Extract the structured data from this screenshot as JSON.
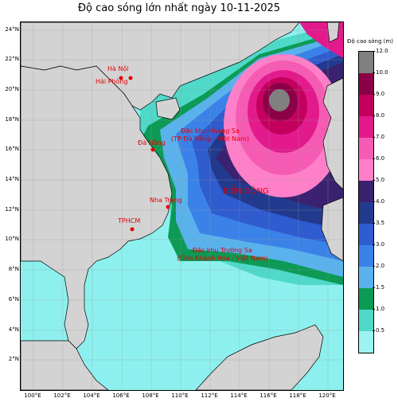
{
  "title": "Độ cao sóng lớn nhất ngày 10-11-2025",
  "legend": {
    "title": "Độ cao sóng (m)",
    "ticks": [
      "12.0",
      "10.0",
      "9.0",
      "8.0",
      "7.0",
      "6.0",
      "5.0",
      "4.0",
      "3.5",
      "3.0",
      "2.0",
      "1.5",
      "1.0",
      "0.5"
    ],
    "colors": [
      "#808080",
      "#8b0046",
      "#c4005e",
      "#e31a8c",
      "#f65bb4",
      "#ff80c8",
      "#3b2270",
      "#223a8e",
      "#2f5ccf",
      "#3b82e8",
      "#5ab2ec",
      "#0c9a55",
      "#4fd9c9",
      "#9cf3f1"
    ]
  },
  "axes": {
    "lat_labels": [
      "24°N",
      "22°N",
      "20°N",
      "18°N",
      "16°N",
      "14°N",
      "12°N",
      "10°N",
      "8°N",
      "6°N",
      "4°N",
      "2°N"
    ],
    "lon_labels": [
      "100°E",
      "102°E",
      "104°E",
      "106°E",
      "108°E",
      "110°E",
      "112°E",
      "114°E",
      "116°E",
      "118°E",
      "120°E"
    ]
  },
  "places": {
    "hanoi": "Hà Nội",
    "haiphong": "Hải Phòng",
    "danang": "Đà Nẵng",
    "nhatrang": "Nha Trang",
    "tphcm": "TPHCM",
    "hoangsa": "Đặc khu Hoàng Sa\n(TP Đà Nẵng - Việt Nam)",
    "truongsa": "Đặc khu Trường Sa\n(Tỉnh Khánh Hòa - Việt Nam)",
    "biendong": "BIỂN ĐÔNG"
  },
  "colors": {
    "land": "#d3d3d3",
    "label": "#e30000"
  }
}
